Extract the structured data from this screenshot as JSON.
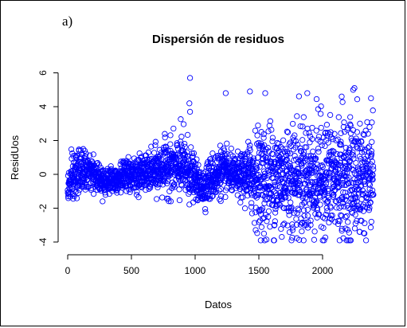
{
  "panel_label": "a)",
  "chart_data": {
    "type": "scatter",
    "title": "Dispersión de residuos",
    "xlabel": "Datos",
    "ylabel": "ResidUos",
    "xlim": [
      0,
      2400
    ],
    "ylim": [
      -4,
      6
    ],
    "xticks": [
      0,
      500,
      1000,
      1500,
      2000
    ],
    "yticks": [
      -4,
      -2,
      0,
      2,
      4,
      6
    ],
    "marker": "open-circle",
    "point_color": "#0000ff",
    "n_points": 2400,
    "series": [
      {
        "x": [
          0,
          25,
          50,
          100,
          150,
          200,
          250,
          300,
          350,
          400,
          450,
          500,
          550,
          600,
          650,
          700,
          750,
          800,
          850,
          900,
          950,
          1000,
          1050,
          1100,
          1150,
          1200,
          1250,
          1300,
          1350,
          1400,
          1450,
          1500,
          1550,
          1600,
          1650,
          1700,
          1750,
          1800,
          1850,
          1900,
          1950,
          2000,
          2050,
          2100,
          2150,
          2200,
          2250,
          2300,
          2350,
          2380
        ],
        "center": [
          -0.8,
          -0.5,
          -0.2,
          0.2,
          0.2,
          0.0,
          -0.2,
          -0.4,
          -0.3,
          -0.2,
          -0.1,
          -0.1,
          0.0,
          0.1,
          0.1,
          0.2,
          0.4,
          0.5,
          0.3,
          0.5,
          0.2,
          -0.3,
          -0.8,
          -0.4,
          -0.1,
          0.2,
          0.1,
          0.0,
          -0.2,
          0.0,
          -0.1,
          -0.2,
          -0.2,
          -0.2,
          -0.2,
          -0.2,
          -0.2,
          -0.2,
          -0.2,
          -0.2,
          -0.2,
          -0.2,
          -0.2,
          -0.2,
          -0.2,
          -0.2,
          -0.2,
          -0.2,
          -0.2,
          -0.2
        ],
        "spread": [
          0.4,
          0.6,
          0.9,
          0.6,
          0.5,
          0.45,
          0.4,
          0.4,
          0.4,
          0.45,
          0.45,
          0.5,
          0.5,
          0.5,
          0.55,
          0.7,
          0.7,
          0.8,
          0.8,
          1.0,
          0.9,
          0.5,
          0.5,
          0.6,
          0.7,
          0.7,
          0.6,
          0.5,
          0.6,
          0.8,
          1.2,
          1.4,
          1.5,
          1.6,
          1.6,
          1.6,
          1.6,
          1.7,
          1.7,
          1.7,
          1.7,
          1.7,
          1.7,
          1.7,
          1.7,
          1.7,
          1.7,
          1.7,
          1.6,
          1.6
        ]
      }
    ],
    "notable_points": [
      {
        "x": 960,
        "y": 5.7
      },
      {
        "x": 955,
        "y": 4.2
      },
      {
        "x": 960,
        "y": 3.7
      },
      {
        "x": 1240,
        "y": 4.8
      },
      {
        "x": 1430,
        "y": 4.9
      },
      {
        "x": 1550,
        "y": 4.8
      },
      {
        "x": 1880,
        "y": 4.8
      },
      {
        "x": 2150,
        "y": 4.6
      },
      {
        "x": 2240,
        "y": 5.0
      },
      {
        "x": 2250,
        "y": 5.1
      },
      {
        "x": 2380,
        "y": 4.5
      },
      {
        "x": 1540,
        "y": -3.5
      },
      {
        "x": 1545,
        "y": -3.9
      },
      {
        "x": 1680,
        "y": -3.7
      },
      {
        "x": 2290,
        "y": -3.4
      },
      {
        "x": 2180,
        "y": -3.2
      }
    ]
  }
}
